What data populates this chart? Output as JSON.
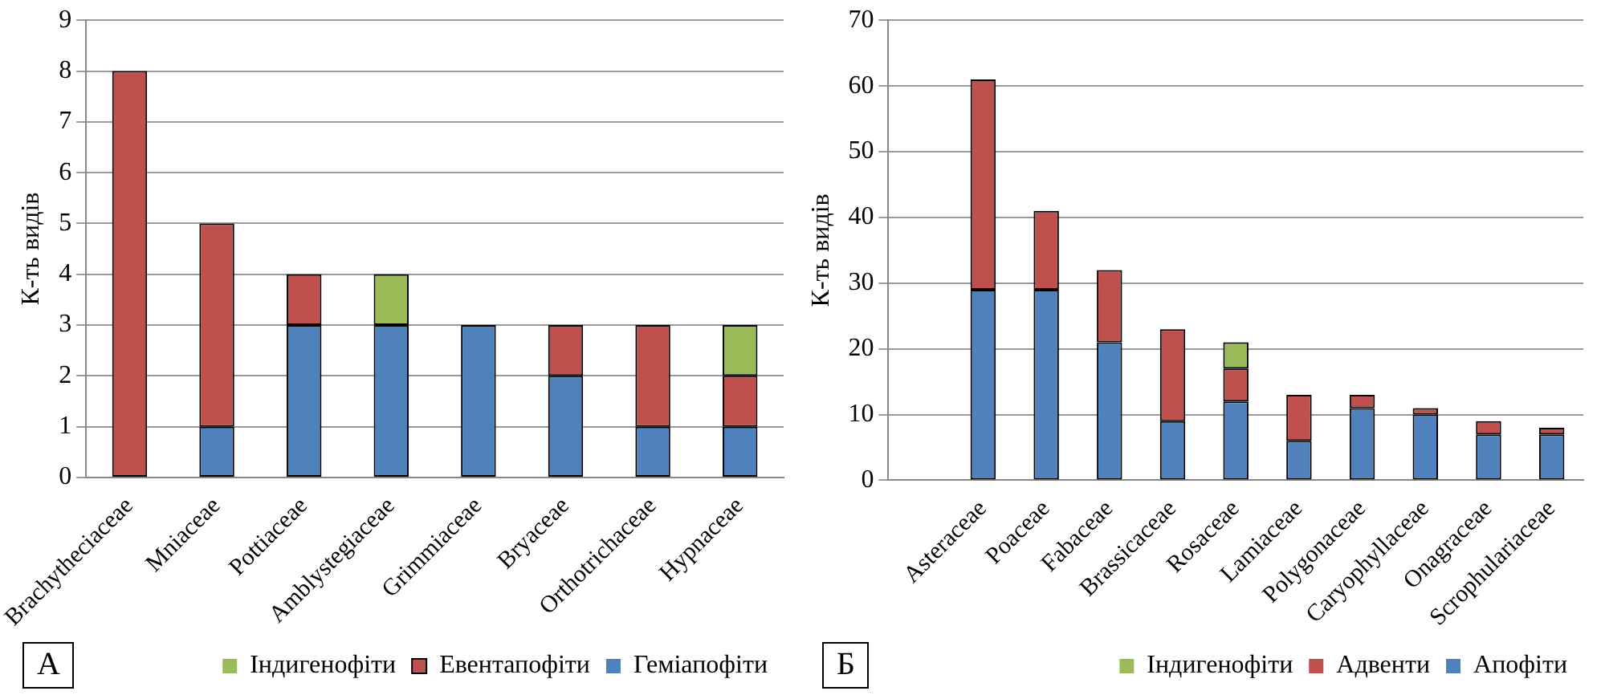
{
  "chart_data": [
    {
      "type": "bar",
      "stacked": true,
      "ylabel": "К-ть видів",
      "categories": [
        "Brachytheciaceae",
        "Mniaceae",
        "Pottiaceae",
        "Amblystegiaceae",
        "Grimmiaceae",
        "Bryaceae",
        "Orthotrichaceae",
        "Hypnaceae"
      ],
      "series": [
        {
          "name": "Геміапофіти",
          "color": "#4f81bd",
          "values": [
            0,
            1,
            3,
            3,
            3,
            2,
            1,
            1
          ]
        },
        {
          "name": "Евентапофіти",
          "color": "#c0504d",
          "values": [
            8,
            4,
            1,
            0,
            0,
            1,
            2,
            1
          ]
        },
        {
          "name": "Індигенофіти",
          "color": "#9bbb59",
          "values": [
            0,
            0,
            0,
            1,
            0,
            0,
            0,
            1
          ]
        }
      ],
      "ylim": [
        0,
        9
      ],
      "yticks": [
        0,
        1,
        2,
        3,
        4,
        5,
        6,
        7,
        8,
        9
      ],
      "grid": "y",
      "legend": "bottom",
      "annotations": [
        "А"
      ]
    },
    {
      "type": "bar",
      "stacked": true,
      "ylabel": "К-ть видів",
      "categories": [
        null,
        "Asteraceae",
        "Poaceae",
        "Fabaceae",
        "Brassicaceae",
        "Rosaceae",
        "Lamiaceae",
        "Polygonaceae",
        "Caryophyllaceae",
        "Onagraceae",
        "Scrophulariaceae"
      ],
      "series": [
        {
          "name": "Апофіти",
          "color": "#4f81bd",
          "values": [
            null,
            29,
            29,
            21,
            9,
            12,
            6,
            11,
            10,
            7,
            7
          ]
        },
        {
          "name": "Адвенти",
          "color": "#c0504d",
          "values": [
            null,
            32,
            12,
            11,
            14,
            5,
            7,
            2,
            1,
            2,
            1
          ]
        },
        {
          "name": "Індигенофіти",
          "color": "#9bbb59",
          "values": [
            null,
            0,
            0,
            0,
            0,
            4,
            0,
            0,
            0,
            0,
            0
          ]
        }
      ],
      "ylim": [
        0,
        70
      ],
      "yticks": [
        0,
        10,
        20,
        30,
        40,
        50,
        60,
        70
      ],
      "grid": "y",
      "legend": "bottom",
      "annotations": [
        "Б"
      ]
    }
  ]
}
